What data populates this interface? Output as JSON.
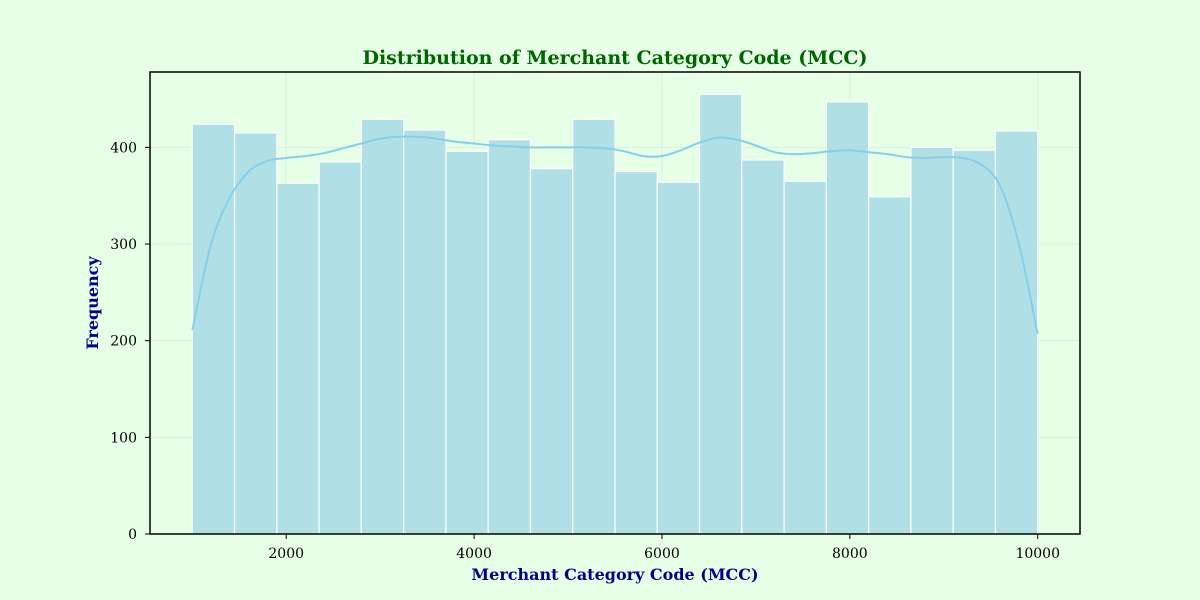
{
  "chart_data": {
    "type": "bar",
    "title": "Distribution of Merchant Category Code (MCC)",
    "xlabel": "Merchant Category Code (MCC)",
    "ylabel": "Frequency",
    "xlim": [
      550,
      10450
    ],
    "ylim": [
      0,
      478
    ],
    "xticks": [
      2000,
      4000,
      6000,
      8000,
      10000
    ],
    "yticks": [
      0,
      100,
      200,
      300,
      400
    ],
    "grid": true,
    "bin_edges": [
      1000,
      1450,
      1900,
      2350,
      2800,
      3250,
      3700,
      4150,
      4600,
      5050,
      5500,
      5950,
      6400,
      6850,
      7300,
      7750,
      8200,
      8650,
      9100,
      9550,
      10000
    ],
    "values": [
      424,
      415,
      363,
      385,
      429,
      418,
      396,
      408,
      378,
      429,
      375,
      364,
      455,
      387,
      365,
      447,
      349,
      400,
      397,
      417
    ],
    "kde": {
      "x": [
        1000,
        1200,
        1400,
        1600,
        1800,
        2000,
        2200,
        2400,
        2600,
        2800,
        3000,
        3200,
        3400,
        3600,
        3800,
        4000,
        4200,
        4400,
        4600,
        4800,
        5000,
        5200,
        5400,
        5600,
        5800,
        6000,
        6200,
        6400,
        6600,
        6800,
        7000,
        7200,
        7400,
        7600,
        7800,
        8000,
        8200,
        8400,
        8600,
        8800,
        9000,
        9200,
        9400,
        9600,
        9800,
        10000
      ],
      "y": [
        211,
        300,
        348,
        375,
        386,
        389,
        391,
        394,
        399,
        404,
        409,
        411,
        411,
        409,
        406,
        404,
        402,
        401,
        400,
        400,
        400,
        400,
        399,
        396,
        391,
        391,
        397,
        405,
        410,
        408,
        402,
        395,
        393,
        394,
        396,
        397,
        395,
        393,
        390,
        389,
        390,
        389,
        382,
        360,
        300,
        207
      ]
    },
    "colors": {
      "bar": "#b0e0e6",
      "kde": "#87ceeb"
    }
  }
}
